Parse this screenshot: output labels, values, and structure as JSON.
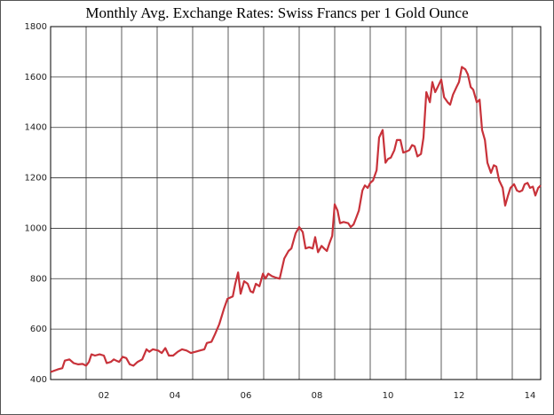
{
  "chart_data": {
    "type": "line",
    "title": "Monthly Avg. Exchange Rates: Swiss Francs per 1 Gold Ounce",
    "series": [
      {
        "color": "#c8323a",
        "x": [
          2001.0,
          2001.2,
          2001.33,
          2001.4,
          2001.53,
          2001.65,
          2001.78,
          2001.9,
          2002.0,
          2002.08,
          2002.15,
          2002.25,
          2002.38,
          2002.5,
          2002.58,
          2002.7,
          2002.78,
          2002.85,
          2002.93,
          2003.03,
          2003.13,
          2003.23,
          2003.33,
          2003.45,
          2003.58,
          2003.7,
          2003.78,
          2003.88,
          2004.03,
          2004.13,
          2004.23,
          2004.33,
          2004.45,
          2004.58,
          2004.7,
          2004.83,
          2004.95,
          2005.08,
          2005.2,
          2005.33,
          2005.4,
          2005.53,
          2005.63,
          2005.75,
          2005.88,
          2005.98,
          2006.13,
          2006.2,
          2006.28,
          2006.35,
          2006.45,
          2006.55,
          2006.63,
          2006.7,
          2006.78,
          2006.88,
          2006.98,
          2007.05,
          2007.13,
          2007.23,
          2007.33,
          2007.45,
          2007.58,
          2007.7,
          2007.78,
          2007.9,
          2008.0,
          2008.1,
          2008.18,
          2008.28,
          2008.38,
          2008.45,
          2008.53,
          2008.63,
          2008.7,
          2008.78,
          2008.85,
          2008.93,
          2009.0,
          2009.08,
          2009.15,
          2009.25,
          2009.38,
          2009.45,
          2009.53,
          2009.6,
          2009.68,
          2009.78,
          2009.85,
          2009.93,
          2010.0,
          2010.08,
          2010.18,
          2010.25,
          2010.35,
          2010.43,
          2010.5,
          2010.58,
          2010.68,
          2010.75,
          2010.85,
          2010.93,
          2011.03,
          2011.1,
          2011.18,
          2011.25,
          2011.33,
          2011.43,
          2011.5,
          2011.58,
          2011.68,
          2011.75,
          2011.83,
          2011.9,
          2012.0,
          2012.08,
          2012.18,
          2012.25,
          2012.33,
          2012.43,
          2012.5,
          2012.58,
          2012.68,
          2012.75,
          2012.83,
          2012.9,
          2013.0,
          2013.08,
          2013.15,
          2013.23,
          2013.3,
          2013.4,
          2013.48,
          2013.55,
          2013.63,
          2013.73,
          2013.8,
          2013.88,
          2013.95,
          2014.05,
          2014.13,
          2014.2,
          2014.28,
          2014.35,
          2014.43,
          2014.5,
          2014.58,
          2014.65,
          2014.73,
          2014.8
        ],
        "values": [
          430,
          440,
          445,
          475,
          480,
          465,
          460,
          462,
          455,
          470,
          500,
          495,
          500,
          495,
          465,
          470,
          480,
          475,
          470,
          490,
          485,
          460,
          455,
          470,
          480,
          520,
          510,
          520,
          515,
          505,
          525,
          495,
          495,
          510,
          520,
          515,
          505,
          510,
          515,
          520,
          545,
          550,
          580,
          620,
          680,
          720,
          730,
          780,
          825,
          740,
          790,
          780,
          750,
          745,
          780,
          770,
          820,
          800,
          820,
          810,
          805,
          800,
          880,
          910,
          920,
          980,
          1005,
          985,
          920,
          925,
          920,
          965,
          905,
          930,
          920,
          910,
          940,
          970,
          1095,
          1070,
          1020,
          1025,
          1020,
          1005,
          1015,
          1040,
          1070,
          1150,
          1170,
          1160,
          1180,
          1190,
          1230,
          1360,
          1390,
          1260,
          1275,
          1280,
          1310,
          1350,
          1350,
          1300,
          1305,
          1310,
          1330,
          1325,
          1285,
          1295,
          1360,
          1540,
          1500,
          1580,
          1540,
          1560,
          1590,
          1520,
          1500,
          1490,
          1530,
          1560,
          1580,
          1640,
          1630,
          1610,
          1560,
          1550,
          1500,
          1510,
          1390,
          1350,
          1260,
          1220,
          1250,
          1245,
          1190,
          1160,
          1090,
          1130,
          1160,
          1175,
          1150,
          1145,
          1150,
          1175,
          1180,
          1160,
          1165,
          1130,
          1160,
          1170
        ]
      }
    ],
    "xlim": [
      2001,
      2014.8
    ],
    "xticks": [
      {
        "value": 2002.5,
        "label": "02"
      },
      {
        "value": 2004.5,
        "label": "04"
      },
      {
        "value": 2006.5,
        "label": "06"
      },
      {
        "value": 2008.5,
        "label": "08"
      },
      {
        "value": 2010.5,
        "label": "10"
      },
      {
        "value": 2012.5,
        "label": "12"
      },
      {
        "value": 2014.5,
        "label": "14"
      }
    ],
    "x_gridlines": [
      2002,
      2003,
      2004,
      2005,
      2006,
      2007,
      2008,
      2009,
      2010,
      2011,
      2012,
      2013,
      2014
    ],
    "ylim": [
      400,
      1800
    ],
    "yticks": [
      400,
      600,
      800,
      1000,
      1200,
      1400,
      1600,
      1800
    ],
    "grid": true
  }
}
